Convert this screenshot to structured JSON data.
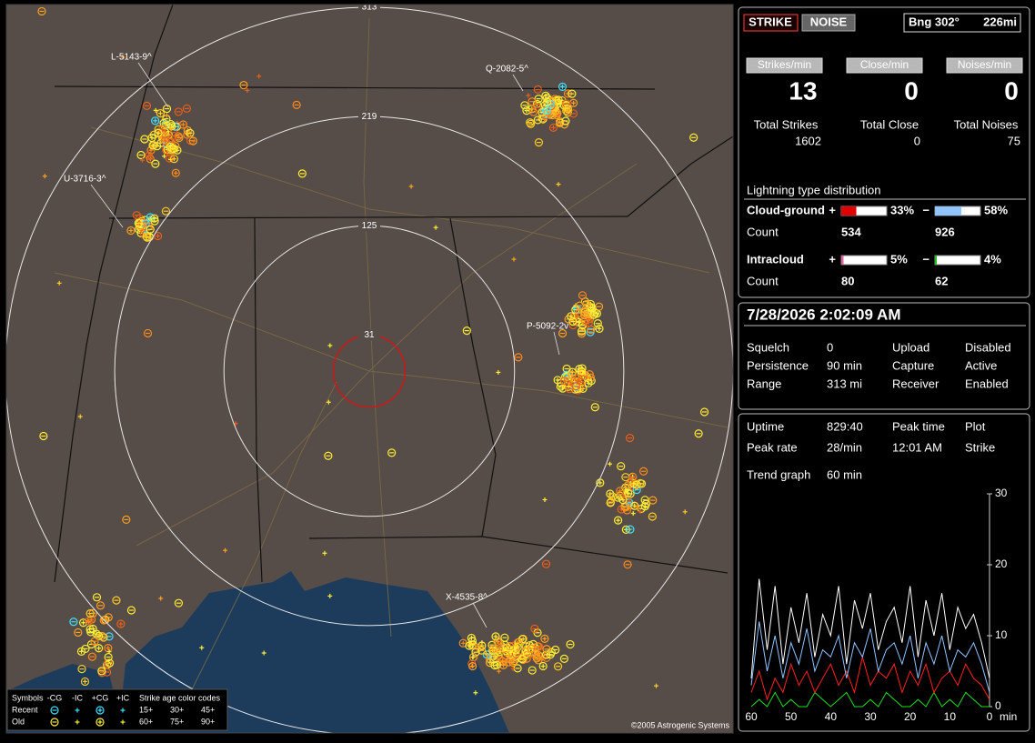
{
  "map": {
    "range_rings": [
      313,
      219,
      125,
      31
    ],
    "storm_labels": [
      "L-5143-9^",
      "Q-2082-5^",
      "U-3716-3^",
      "P-5092-2v",
      "X-4535-8^"
    ],
    "legend": {
      "title": "Symbols",
      "symbol_types": [
        "-CG",
        "-IC",
        "+CG",
        "+IC"
      ],
      "age_title": "Strike age color codes",
      "rows": [
        "Recent",
        "Old"
      ],
      "ages": [
        [
          "15+",
          "30+",
          "45+"
        ],
        [
          "60+",
          "75+",
          "90+"
        ]
      ]
    },
    "copyright": "©2005 Astrogenic Systems"
  },
  "status": {
    "modes": [
      "STRIKE",
      "NOISE"
    ],
    "bearing": "Bng 302°",
    "distance": "226mi",
    "rates": [
      {
        "label": "Strikes/min",
        "value": 13
      },
      {
        "label": "Close/min",
        "value": 0
      },
      {
        "label": "Noises/min",
        "value": 0
      }
    ],
    "totals": [
      {
        "label": "Total Strikes",
        "value": 1602
      },
      {
        "label": "Total Close",
        "value": 0
      },
      {
        "label": "Total Noises",
        "value": 75
      }
    ],
    "distribution": {
      "title": "Lightning type distribution",
      "count_label": "Count",
      "types": [
        {
          "name": "Cloud-ground",
          "positive": {
            "sign": "+",
            "percent": {
              "value": 33,
              "label": "33%"
            },
            "count": 534
          },
          "negative": {
            "sign": "−",
            "percent": {
              "value": 58,
              "label": "58%"
            },
            "count": 926
          }
        },
        {
          "name": "Intracloud",
          "positive": {
            "sign": "+",
            "percent": {
              "value": 5,
              "label": "5%"
            },
            "count": 80
          },
          "negative": {
            "sign": "−",
            "percent": {
              "value": 4,
              "label": "4%"
            },
            "count": 62
          }
        }
      ]
    }
  },
  "info": {
    "datetime": "7/28/2026 2:02:09 AM",
    "rows": [
      [
        "Squelch",
        0,
        "Upload",
        "Disabled"
      ],
      [
        "Persistence",
        "90 min",
        "Capture",
        "Active"
      ],
      [
        "Range",
        "313 mi",
        "Receiver",
        "Enabled"
      ]
    ]
  },
  "stats": {
    "rows": [
      [
        "Uptime",
        "829:40",
        "Peak time",
        "Plot"
      ],
      [
        "Peak rate",
        "28/min",
        "12:01 AM",
        "Strike"
      ],
      [
        "Trend graph",
        "60 min"
      ]
    ]
  },
  "trend_graph": {
    "type": "line",
    "x": [
      60,
      58,
      56,
      54,
      52,
      50,
      48,
      46,
      44,
      42,
      40,
      38,
      36,
      34,
      32,
      30,
      28,
      26,
      24,
      22,
      20,
      18,
      16,
      14,
      12,
      10,
      8,
      6,
      4,
      2,
      0
    ],
    "xlim": [
      60,
      0
    ],
    "xticks": [
      60,
      50,
      40,
      30,
      20,
      10,
      0
    ],
    "x_unit": "min",
    "ylim": [
      0,
      30
    ],
    "yticks": [
      0,
      10,
      20,
      30
    ],
    "series": [
      {
        "color": "#ffffff",
        "values": [
          4,
          18,
          8,
          17,
          6,
          14,
          9,
          16,
          7,
          13,
          10,
          17,
          6,
          15,
          11,
          16,
          8,
          12,
          14,
          9,
          17,
          7,
          15,
          10,
          16,
          8,
          14,
          11,
          13,
          9,
          4
        ]
      },
      {
        "color": "#8fc4ff",
        "values": [
          3,
          12,
          5,
          10,
          4,
          9,
          6,
          11,
          5,
          8,
          7,
          10,
          4,
          9,
          7,
          11,
          5,
          8,
          9,
          6,
          10,
          4,
          9,
          6,
          10,
          5,
          8,
          7,
          9,
          6,
          2
        ]
      },
      {
        "color": "#ff2020",
        "values": [
          2,
          5,
          1,
          4,
          2,
          6,
          3,
          5,
          2,
          4,
          6,
          3,
          5,
          2,
          7,
          3,
          5,
          4,
          6,
          2,
          5,
          3,
          6,
          2,
          4,
          5,
          3,
          6,
          4,
          3,
          1
        ]
      },
      {
        "color": "#20e020",
        "values": [
          0,
          1,
          0,
          2,
          0,
          1,
          0,
          0,
          2,
          1,
          0,
          1,
          2,
          0,
          0,
          1,
          0,
          2,
          1,
          0,
          0,
          1,
          0,
          2,
          0,
          1,
          0,
          2,
          1,
          0,
          0
        ]
      }
    ]
  }
}
